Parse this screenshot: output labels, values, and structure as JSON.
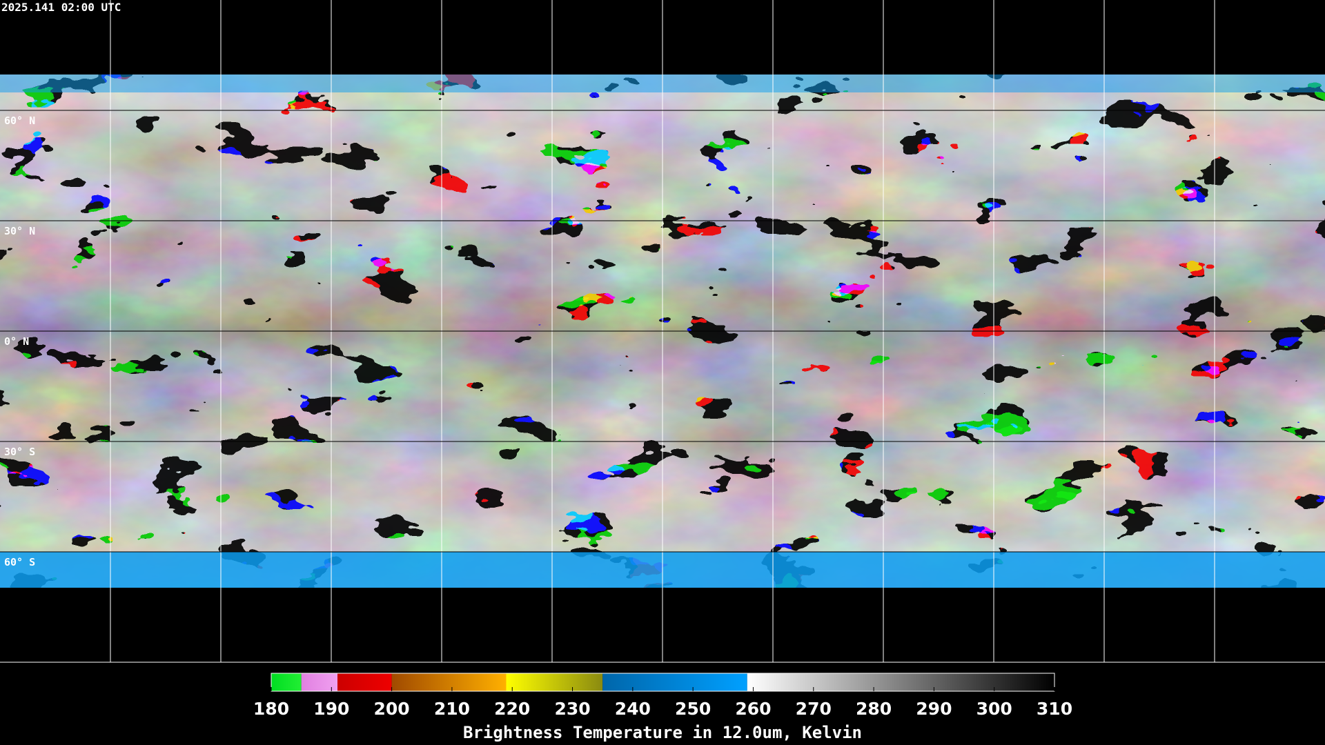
{
  "header": {
    "timestamp": "2025.141 02:00 UTC"
  },
  "map": {
    "lat_labels": [
      "60° N",
      "30° N",
      "0° N",
      "30° S",
      "60° S"
    ]
  },
  "colorbar": {
    "lim": [
      180,
      310
    ],
    "ticks": [
      180,
      190,
      200,
      210,
      220,
      230,
      240,
      250,
      260,
      270,
      280,
      290,
      300,
      310
    ],
    "segments": [
      {
        "from": 180,
        "to": 185,
        "colors": [
          "#00dd22",
          "#22ee33"
        ]
      },
      {
        "from": 185,
        "to": 191,
        "colors": [
          "#e080e0",
          "#f0a0f0"
        ]
      },
      {
        "from": 191,
        "to": 200,
        "colors": [
          "#cc0000",
          "#ee0000"
        ]
      },
      {
        "from": 200,
        "to": 219,
        "colors": [
          "#a04a00",
          "#ffb000"
        ]
      },
      {
        "from": 219,
        "to": 235,
        "colors": [
          "#ffff00",
          "#8a8a10"
        ]
      },
      {
        "from": 235,
        "to": 259,
        "colors": [
          "#0066aa",
          "#00a0ff"
        ]
      },
      {
        "from": 259,
        "to": 310,
        "colors": [
          "#ffffff",
          "#000000"
        ]
      }
    ],
    "title": "Brightness Temperature in 12.0um, Kelvin"
  }
}
